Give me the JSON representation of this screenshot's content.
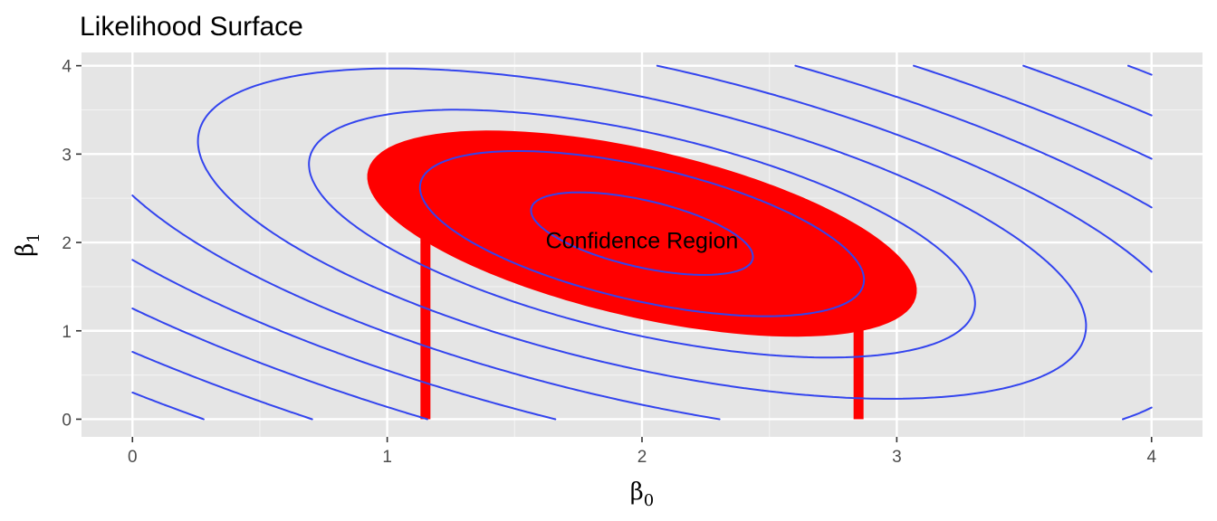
{
  "chart_data": {
    "type": "contour",
    "title": "Likelihood Surface",
    "xlabel": {
      "symbol": "β",
      "subscript": "0"
    },
    "ylabel": {
      "symbol": "β",
      "subscript": "1"
    },
    "xlim": [
      -0.2,
      4.2
    ],
    "ylim": [
      -0.2,
      4.15
    ],
    "x_ticks": [
      0,
      1,
      2,
      3,
      4
    ],
    "y_ticks": [
      0,
      1,
      2,
      3,
      4
    ],
    "x_tick_labels": [
      "0",
      "1",
      "2",
      "3",
      "4"
    ],
    "y_tick_labels": [
      "0",
      "1",
      "2",
      "3",
      "4"
    ],
    "grid": true,
    "panel_background": "#e5e5e5",
    "contour_color": "#3344ee",
    "region_color": "#ff0000",
    "likelihood_center": [
      2.0,
      2.1
    ],
    "contour_line_count": 18,
    "confidence_region": {
      "label": "Confidence Region",
      "label_position": [
        2.0,
        2.0
      ],
      "beta0_interval": [
        1.15,
        2.85
      ],
      "beta1_range": [
        0.8,
        3.2
      ]
    }
  }
}
